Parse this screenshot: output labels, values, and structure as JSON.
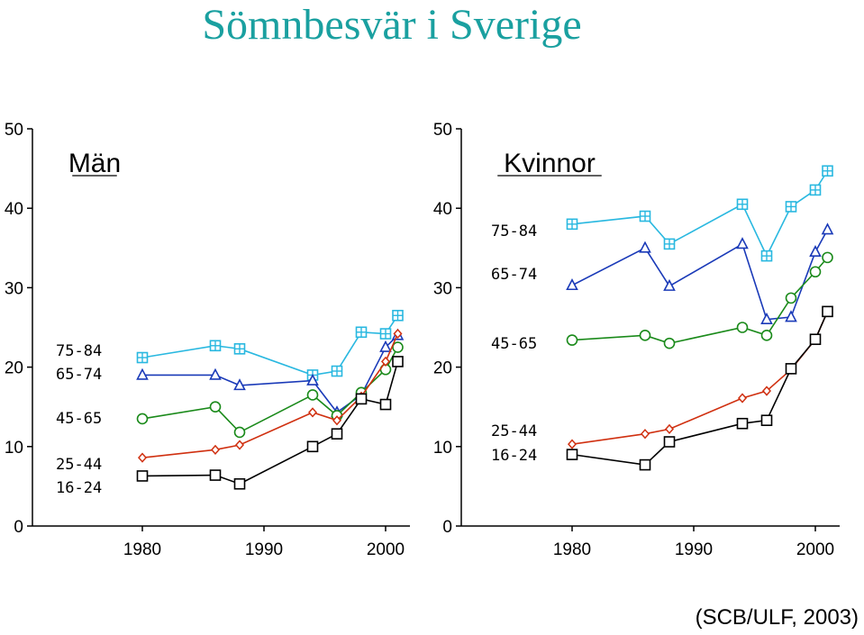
{
  "title": "Sömnbesvär i Sverige",
  "source": "(SCB/ULF, 2003)",
  "colors": {
    "75-84": "#29b8e0",
    "65-74": "#1a3ab8",
    "45-65": "#1a8a1a",
    "25-44": "#d03010",
    "16-24": "#000000"
  },
  "chart_data": [
    {
      "type": "line",
      "title": "Män",
      "x_ticks": [
        "1980",
        "1990",
        "2000"
      ],
      "y_ticks": [
        "0",
        "10",
        "20",
        "30",
        "40",
        "50"
      ],
      "ylim": [
        0,
        50
      ],
      "xlim": [
        1975,
        2002
      ],
      "series": [
        {
          "name": "75-84",
          "marker": "square-plus",
          "x": [
            1980,
            1986,
            1988,
            1994,
            1996,
            1998,
            2000,
            2001
          ],
          "y": [
            21.2,
            22.7,
            22.3,
            19.0,
            19.5,
            24.4,
            24.2,
            26.5
          ]
        },
        {
          "name": "65-74",
          "marker": "triangle",
          "x": [
            1980,
            1986,
            1988,
            1994,
            1996,
            1998,
            2000,
            2001
          ],
          "y": [
            19.0,
            19.0,
            17.7,
            18.3,
            14.3,
            16.5,
            22.5,
            24.0
          ]
        },
        {
          "name": "45-65",
          "marker": "circle",
          "x": [
            1980,
            1986,
            1988,
            1994,
            1996,
            1998,
            2000,
            2001
          ],
          "y": [
            13.5,
            15.0,
            11.8,
            16.5,
            13.9,
            16.8,
            19.7,
            22.5
          ]
        },
        {
          "name": "25-44",
          "marker": "diamond",
          "x": [
            1980,
            1986,
            1988,
            1994,
            1996,
            1998,
            2000,
            2001
          ],
          "y": [
            8.6,
            9.6,
            10.2,
            14.3,
            13.3,
            16.3,
            20.7,
            24.2
          ]
        },
        {
          "name": "16-24",
          "marker": "square",
          "x": [
            1980,
            1986,
            1988,
            1994,
            1996,
            1998,
            2000,
            2001
          ],
          "y": [
            6.3,
            6.4,
            5.3,
            10.0,
            11.6,
            16.0,
            15.3,
            20.7
          ]
        }
      ],
      "labels": [
        "75-84",
        "65-74",
        "45-65",
        "25-44",
        "16-24"
      ]
    },
    {
      "type": "line",
      "title": "Kvinnor",
      "x_ticks": [
        "1980",
        "1990",
        "2000"
      ],
      "y_ticks": [
        "0",
        "10",
        "20",
        "30",
        "40",
        "50"
      ],
      "ylim": [
        0,
        50
      ],
      "xlim": [
        1975,
        2002
      ],
      "series": [
        {
          "name": "75-84",
          "marker": "square-plus",
          "x": [
            1980,
            1986,
            1988,
            1994,
            1996,
            1998,
            2000,
            2001
          ],
          "y": [
            38.0,
            39.0,
            35.5,
            40.5,
            34.0,
            40.2,
            42.3,
            44.7
          ]
        },
        {
          "name": "65-74",
          "marker": "triangle",
          "x": [
            1980,
            1986,
            1988,
            1994,
            1996,
            1998,
            2000,
            2001
          ],
          "y": [
            30.3,
            35.0,
            30.2,
            35.5,
            26.0,
            26.3,
            34.5,
            37.3
          ]
        },
        {
          "name": "45-65",
          "marker": "circle",
          "x": [
            1980,
            1986,
            1988,
            1994,
            1996,
            1998,
            2000,
            2001
          ],
          "y": [
            23.4,
            24.0,
            23.0,
            25.0,
            24.0,
            28.7,
            32.0,
            33.8
          ]
        },
        {
          "name": "25-44",
          "marker": "diamond",
          "x": [
            1980,
            1986,
            1988,
            1994,
            1996,
            1998,
            2000,
            2001
          ],
          "y": [
            10.3,
            11.6,
            12.2,
            16.1,
            17.0,
            19.7,
            23.5,
            27.0
          ]
        },
        {
          "name": "16-24",
          "marker": "square",
          "x": [
            1980,
            1986,
            1988,
            1994,
            1996,
            1998,
            2000,
            2001
          ],
          "y": [
            9.0,
            7.7,
            10.6,
            12.9,
            13.3,
            19.8,
            23.5,
            27.0
          ]
        }
      ],
      "labels": [
        "75-84",
        "65-74",
        "45-65",
        "25-44",
        "16-24"
      ]
    }
  ]
}
